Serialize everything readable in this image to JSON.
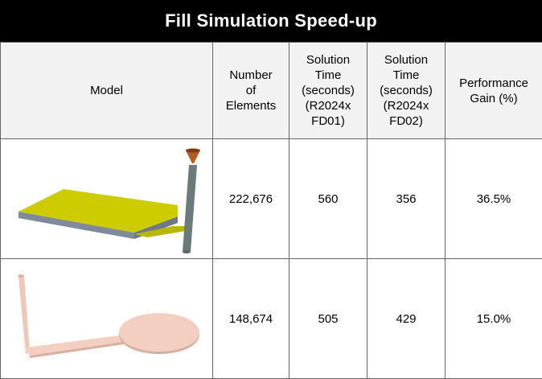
{
  "title": "Fill Simulation Speed-up",
  "columns": [
    "Model",
    "Number\nof\nElements",
    "Solution\nTime\n(seconds)\n(R2024x\nFD01)",
    "Solution\nTime\n(seconds)\n(R2024x\nFD02)",
    "Performance\nGain (%)"
  ],
  "rows": [
    {
      "model": "plate-with-runner-and-sprue",
      "elements": "222,676",
      "time_fd01": "560",
      "time_fd02": "356",
      "gain": "36.5%"
    },
    {
      "model": "paddle-disc-with-sprue",
      "elements": "148,674",
      "time_fd01": "505",
      "time_fd02": "429",
      "gain": "15.0%"
    }
  ],
  "colors": {
    "title_bg": "#000000",
    "title_text": "#ffffff",
    "header_bg": "#f2f2f2",
    "plate_top": "#cccc00",
    "plate_side": "#7f8a9a",
    "sprue": "#6b7a7a",
    "gate_cone": "#b85a20",
    "pink_part": "#f3cfc2"
  }
}
